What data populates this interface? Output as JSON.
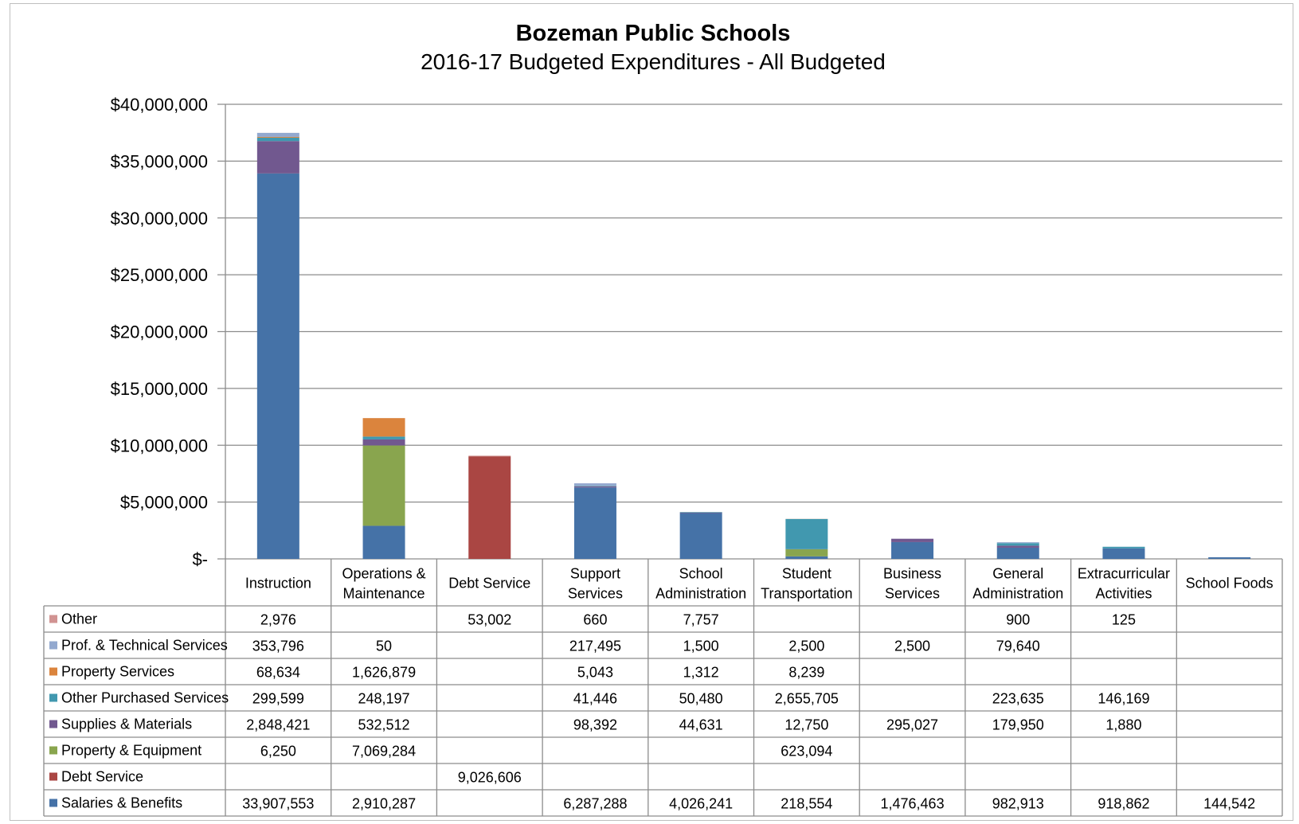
{
  "chart_data": {
    "type": "bar",
    "stacked": true,
    "title": "Bozeman Public Schools",
    "subtitle": "2016-17 Budgeted Expenditures - All Budgeted",
    "ylim": [
      0,
      40000000
    ],
    "yticks": [
      0,
      5000000,
      10000000,
      15000000,
      20000000,
      25000000,
      30000000,
      35000000,
      40000000
    ],
    "ytick_labels": [
      "$-",
      "$5,000,000",
      "$10,000,000",
      "$15,000,000",
      "$20,000,000",
      "$25,000,000",
      "$30,000,000",
      "$35,000,000",
      "$40,000,000"
    ],
    "grid": true,
    "legend": "data-table",
    "categories": [
      [
        "Instruction"
      ],
      [
        "Operations &",
        "Maintenance"
      ],
      [
        "Debt Service"
      ],
      [
        "Support",
        "Services"
      ],
      [
        "School",
        "Administration"
      ],
      [
        "Student",
        "Transportation"
      ],
      [
        "Business",
        "Services"
      ],
      [
        "General",
        "Administration"
      ],
      [
        "Extracurricular",
        "Activities"
      ],
      [
        "School Foods"
      ]
    ],
    "series": [
      {
        "name": "Salaries & Benefits",
        "color": "#4572a7",
        "values": [
          33907553,
          2910287,
          null,
          6287288,
          4026241,
          218554,
          1476463,
          982913,
          918862,
          144542
        ],
        "labels": [
          "33,907,553",
          "2,910,287",
          "",
          "6,287,288",
          "4,026,241",
          "218,554",
          "1,476,463",
          "982,913",
          "918,862",
          "144,542"
        ]
      },
      {
        "name": "Debt Service",
        "color": "#aa4643",
        "values": [
          null,
          null,
          9026606,
          null,
          null,
          null,
          null,
          null,
          null,
          null
        ],
        "labels": [
          "",
          "",
          "9,026,606",
          "",
          "",
          "",
          "",
          "",
          "",
          ""
        ]
      },
      {
        "name": "Property & Equipment",
        "color": "#89a54e",
        "values": [
          6250,
          7069284,
          null,
          null,
          null,
          623094,
          null,
          null,
          null,
          null
        ],
        "labels": [
          "6,250",
          "7,069,284",
          "",
          "",
          "",
          "623,094",
          "",
          "",
          "",
          ""
        ]
      },
      {
        "name": "Supplies & Materials",
        "color": "#71588f",
        "values": [
          2848421,
          532512,
          null,
          98392,
          44631,
          12750,
          295027,
          179950,
          1880,
          null
        ],
        "labels": [
          "2,848,421",
          "532,512",
          "",
          "98,392",
          "44,631",
          "12,750",
          "295,027",
          "179,950",
          "1,880",
          ""
        ]
      },
      {
        "name": "Other Purchased Services",
        "color": "#4198af",
        "values": [
          299599,
          248197,
          null,
          41446,
          50480,
          2655705,
          null,
          223635,
          146169,
          null
        ],
        "labels": [
          "299,599",
          "248,197",
          "",
          "41,446",
          "50,480",
          "2,655,705",
          "",
          "223,635",
          "146,169",
          ""
        ]
      },
      {
        "name": "Property Services",
        "color": "#db843d",
        "values": [
          68634,
          1626879,
          null,
          5043,
          1312,
          8239,
          null,
          null,
          null,
          null
        ],
        "labels": [
          "68,634",
          "1,626,879",
          "",
          "5,043",
          "1,312",
          "8,239",
          "",
          "",
          "",
          ""
        ]
      },
      {
        "name": "Prof. & Technical Services",
        "color": "#93a9cf",
        "values": [
          353796,
          50,
          null,
          217495,
          1500,
          2500,
          2500,
          79640,
          null,
          null
        ],
        "labels": [
          "353,796",
          "50",
          "",
          "217,495",
          "1,500",
          "2,500",
          "2,500",
          "79,640",
          "",
          ""
        ]
      },
      {
        "name": "Other",
        "color": "#d19392",
        "values": [
          2976,
          null,
          53002,
          660,
          7757,
          null,
          null,
          900,
          125,
          null
        ],
        "labels": [
          "2,976",
          "",
          "53,002",
          "660",
          "7,757",
          "",
          "",
          "900",
          "125",
          ""
        ]
      }
    ],
    "table_row_order": [
      "Other",
      "Prof. & Technical Services",
      "Property Services",
      "Other Purchased Services",
      "Supplies & Materials",
      "Property & Equipment",
      "Debt Service",
      "Salaries & Benefits"
    ]
  }
}
